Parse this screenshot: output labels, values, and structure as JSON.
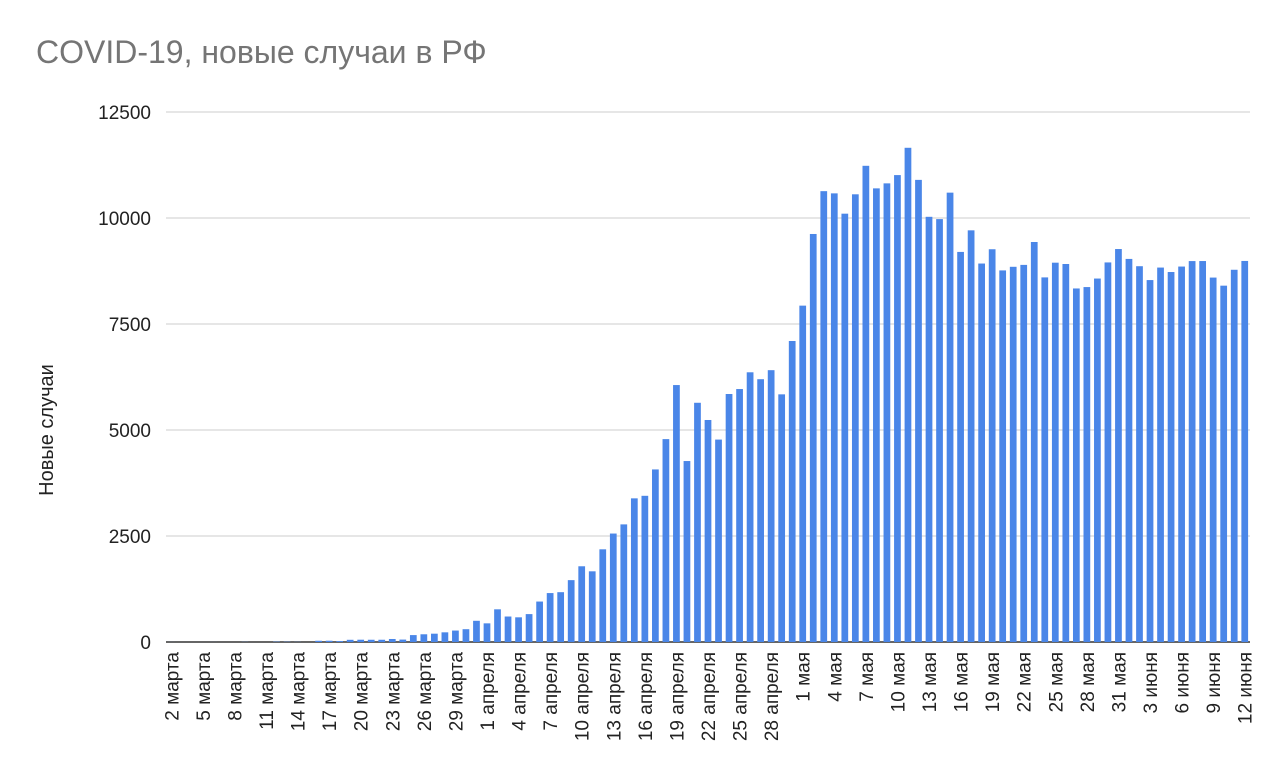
{
  "chart_data": {
    "type": "bar",
    "title": "COVID-19, новые случаи в РФ",
    "xlabel": "",
    "ylabel": "Новые случаи",
    "ylim": [
      0,
      12500
    ],
    "y_ticks": [
      0,
      2500,
      5000,
      7500,
      10000,
      12500
    ],
    "grid": true,
    "legend": "none",
    "bar_color": "#4a86e8",
    "categories": [
      "2 марта",
      "3 марта",
      "4 марта",
      "5 марта",
      "6 марта",
      "7 марта",
      "8 марта",
      "9 марта",
      "10 марта",
      "11 марта",
      "12 марта",
      "13 марта",
      "14 марта",
      "15 марта",
      "16 марта",
      "17 марта",
      "18 марта",
      "19 марта",
      "20 марта",
      "21 марта",
      "22 марта",
      "23 марта",
      "24 марта",
      "25 марта",
      "26 марта",
      "27 марта",
      "28 марта",
      "29 марта",
      "30 марта",
      "31 марта",
      "1 апреля",
      "2 апреля",
      "3 апреля",
      "4 апреля",
      "5 апреля",
      "6 апреля",
      "7 апреля",
      "8 апреля",
      "9 апреля",
      "10 апреля",
      "11 апреля",
      "12 апреля",
      "13 апреля",
      "14 апреля",
      "15 апреля",
      "16 апреля",
      "17 апреля",
      "18 апреля",
      "19 апреля",
      "20 апреля",
      "21 апреля",
      "22 апреля",
      "23 апреля",
      "24 апреля",
      "25 апреля",
      "26 апреля",
      "27 апреля",
      "28 апреля",
      "29 апреля",
      "30 апреля",
      "1 мая",
      "2 мая",
      "3 мая",
      "4 мая",
      "5 мая",
      "6 мая",
      "7 мая",
      "8 мая",
      "9 мая",
      "10 мая",
      "11 мая",
      "12 мая",
      "13 мая",
      "14 мая",
      "15 мая",
      "16 мая",
      "17 мая",
      "18 мая",
      "19 мая",
      "20 мая",
      "21 мая",
      "22 мая",
      "23 мая",
      "24 мая",
      "25 мая",
      "26 мая",
      "27 мая",
      "28 мая",
      "29 мая",
      "30 мая",
      "31 мая",
      "1 июня",
      "2 июня",
      "3 июня",
      "4 июня",
      "5 июня",
      "6 июня",
      "7 июня",
      "8 июня",
      "9 июня",
      "10 июня",
      "11 июня",
      "12 июня"
    ],
    "label_every": 3,
    "values": [
      1,
      0,
      0,
      0,
      1,
      0,
      0,
      3,
      0,
      0,
      8,
      6,
      3,
      0,
      29,
      30,
      21,
      52,
      54,
      53,
      53,
      71,
      57,
      163,
      182,
      196,
      228,
      270,
      302,
      500,
      440,
      771,
      601,
      582,
      658,
      954,
      1154,
      1175,
      1459,
      1786,
      1667,
      2186,
      2558,
      2774,
      3388,
      3448,
      4070,
      4785,
      6060,
      4268,
      5642,
      5236,
      4774,
      5849,
      5966,
      6361,
      6198,
      6411,
      5841,
      7099,
      7933,
      9623,
      10633,
      10581,
      10102,
      10559,
      11231,
      10699,
      10817,
      11012,
      11656,
      10899,
      10028,
      9974,
      10598,
      9200,
      9709,
      8926,
      9263,
      8764,
      8849,
      8894,
      9434,
      8599,
      8946,
      8915,
      8338,
      8371,
      8572,
      8952,
      9268,
      9035,
      8863,
      8536,
      8831,
      8726,
      8855,
      8984,
      8985,
      8595,
      8404,
      8779,
      8987
    ]
  }
}
